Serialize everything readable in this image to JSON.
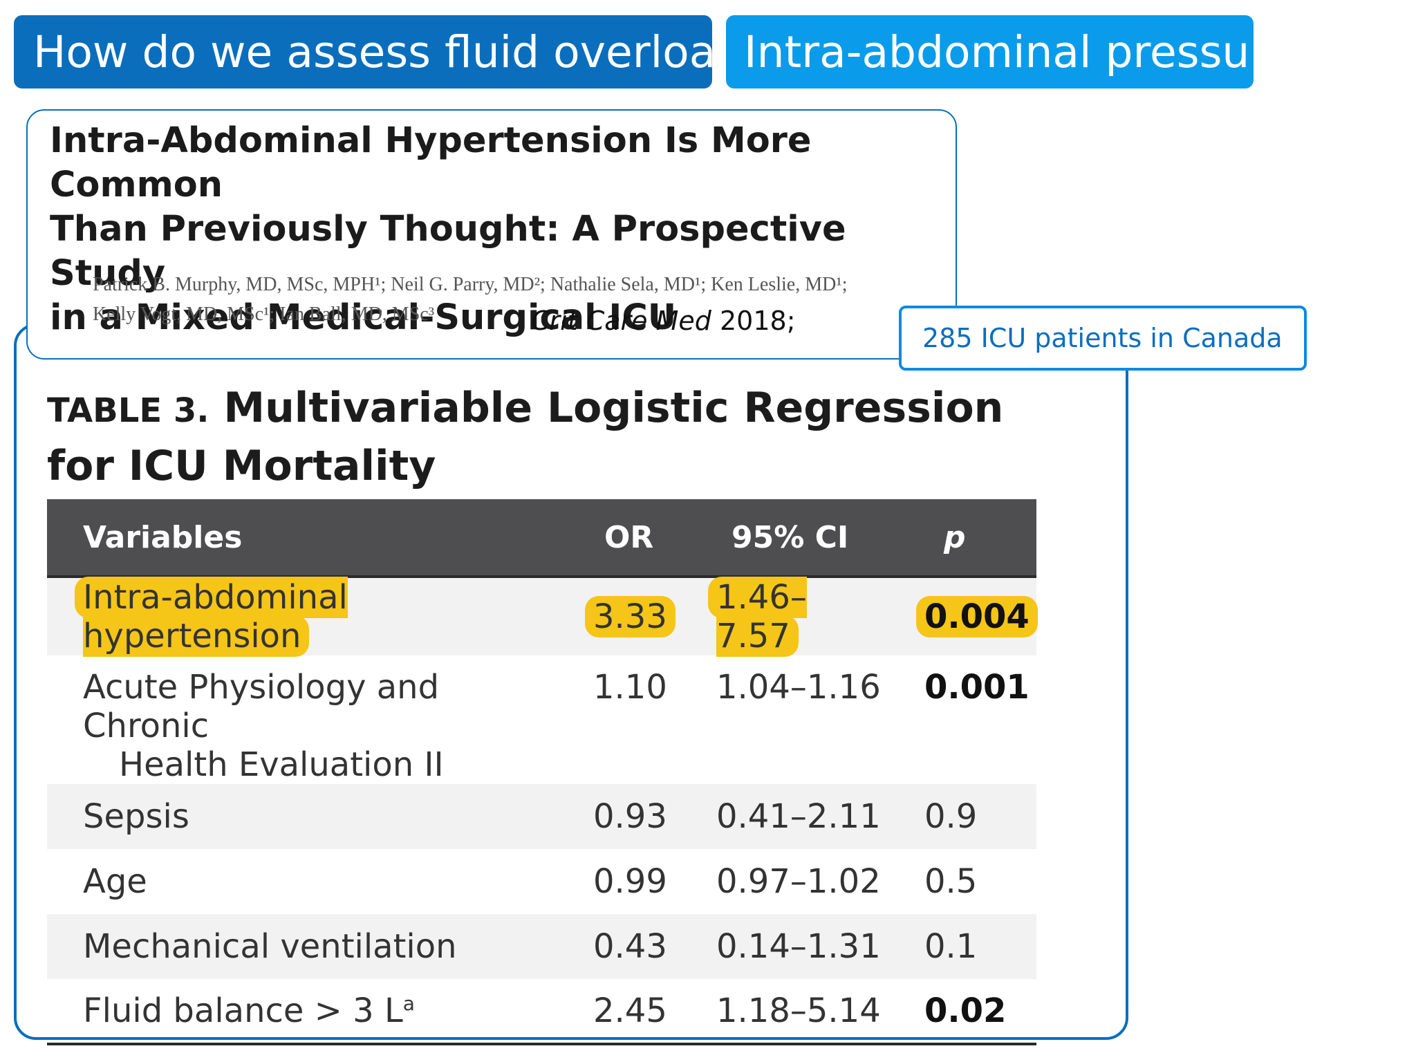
{
  "header": {
    "left_title": "How do we assess fluid overload ?",
    "right_title": "Intra-abdominal pressure"
  },
  "paper": {
    "title_line1": "Intra-Abdominal Hypertension Is More Common",
    "title_line2": "Than Previously Thought: A Prospective Study",
    "title_line3": "in a Mixed Medical-Surgical ICU",
    "authors_line1": "Patrick B. Murphy, MD, MSc, MPH¹; Neil G. Parry, MD²; Nathalie Sela, MD¹; Ken Leslie, MD¹;",
    "authors_line2": "Kelly Vogt, MD, MSc¹; Ian Ball, MD, MSc³",
    "journal_name": "Crit  Care  Med",
    "journal_year": "2018;"
  },
  "callout": "285 ICU patients in Canada",
  "table": {
    "label": "TABLE 3.",
    "title_line1": "Multivariable Logistic Regression",
    "title_line2": "for ICU Mortality",
    "columns": [
      "Variables",
      "OR",
      "95% CI",
      "p"
    ],
    "rows": [
      {
        "variable": "Intra-abdominal hypertension",
        "or": "3.33",
        "ci": "1.46–7.57",
        "p": "0.004"
      },
      {
        "variable_line1": "Acute Physiology and Chronic",
        "variable_line2": "Health Evaluation II",
        "or": "1.10",
        "ci": "1.04–1.16",
        "p": "0.001"
      },
      {
        "variable": "Sepsis",
        "or": "0.93",
        "ci": "0.41–2.11",
        "p": "0.9"
      },
      {
        "variable": "Age",
        "or": "0.99",
        "ci": "0.97–1.02",
        "p": "0.5"
      },
      {
        "variable": "Mechanical ventilation",
        "or": "0.43",
        "ci": "0.14–1.31",
        "p": "0.1"
      },
      {
        "variable": "Fluid balance > 3 L",
        "footnote": "a",
        "or": "2.45",
        "ci": "1.18–5.14",
        "p": "0.02"
      }
    ]
  },
  "colors": {
    "header_dark_blue": "#0a6ebd",
    "header_light_blue": "#0a9cea",
    "highlight_yellow": "#f5c518",
    "table_header_gray": "#4e4e50"
  }
}
